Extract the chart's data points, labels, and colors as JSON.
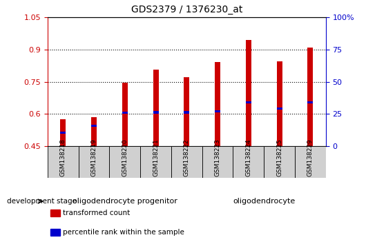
{
  "title": "GDS2379 / 1376230_at",
  "samples": [
    "GSM138218",
    "GSM138219",
    "GSM138220",
    "GSM138221",
    "GSM138222",
    "GSM138223",
    "GSM138224",
    "GSM138225",
    "GSM138229"
  ],
  "transformed_count": [
    0.575,
    0.585,
    0.745,
    0.805,
    0.77,
    0.84,
    0.945,
    0.845,
    0.91
  ],
  "percentile_rank": [
    0.515,
    0.545,
    0.605,
    0.608,
    0.608,
    0.614,
    0.655,
    0.625,
    0.655
  ],
  "ylim": [
    0.45,
    1.05
  ],
  "yticks_left": [
    0.45,
    0.6,
    0.75,
    0.9,
    1.05
  ],
  "yticks_right": [
    0,
    25,
    50,
    75,
    100
  ],
  "groups": [
    {
      "label": "oligodendrocyte progenitor",
      "start": 0,
      "end": 5
    },
    {
      "label": "oligodendrocyte",
      "start": 5,
      "end": 9
    }
  ],
  "bar_color": "#cc0000",
  "percentile_color": "#0000cc",
  "baseline": 0.45,
  "tick_label_color_left": "#cc0000",
  "tick_label_color_right": "#0000cc",
  "xlabel_groups": "development stage",
  "legend_items": [
    {
      "color": "#cc0000",
      "label": "transformed count"
    },
    {
      "color": "#0000cc",
      "label": "percentile rank within the sample"
    }
  ],
  "bar_width": 0.18,
  "gray_color": "#d0d0d0",
  "green_color": "#90EE90"
}
